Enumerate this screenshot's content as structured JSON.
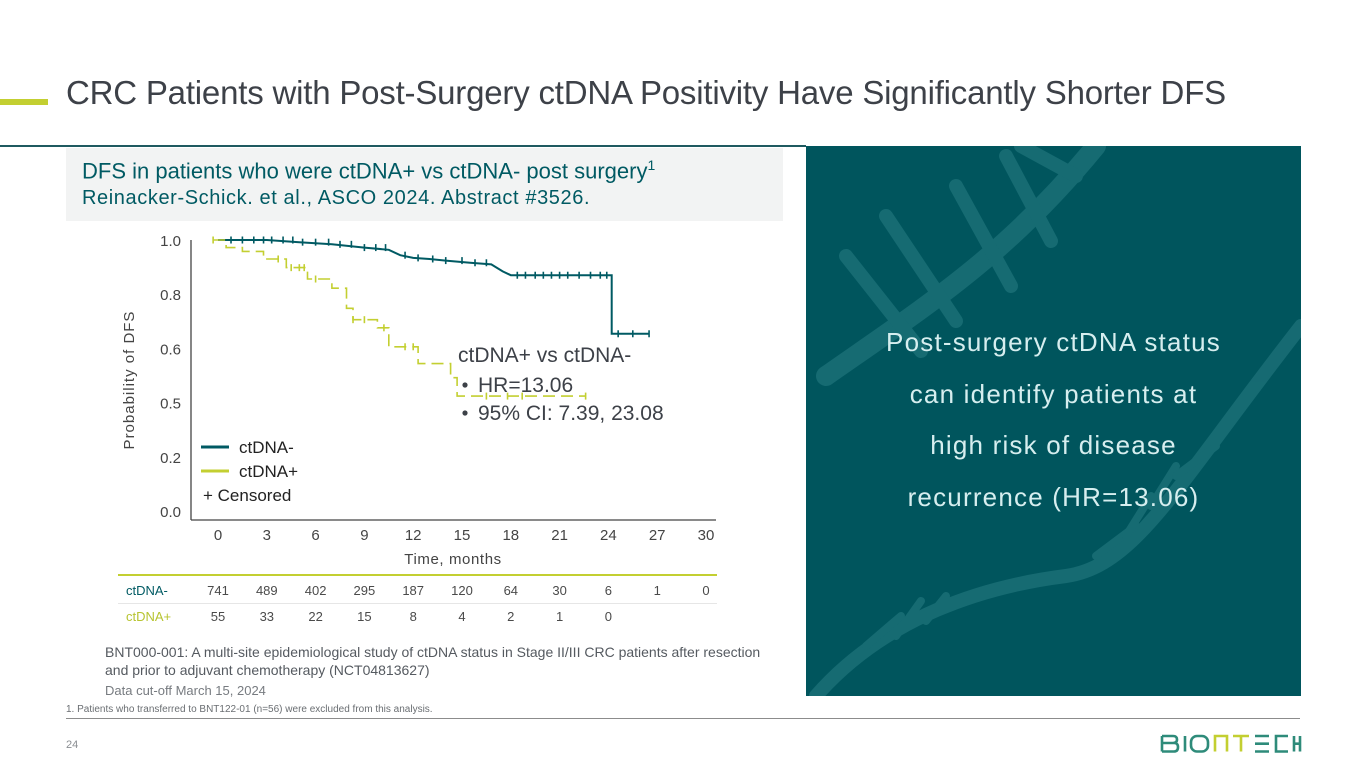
{
  "slide": {
    "title": "CRC Patients with Post-Surgery ctDNA Positivity Have Significantly Shorter DFS",
    "page_number": "24",
    "brand": {
      "logo_text_left": "BIO",
      "logo_text_mid": "NT",
      "logo_text_right": "ECH",
      "primary_color": "#00555d",
      "accent_color": "#c3cf31",
      "logo_color": "#2e8b7a"
    }
  },
  "subtitle": {
    "line1": "DFS in patients who were ctDNA+ vs ctDNA- post surgery",
    "line1_superscript": "1",
    "line2": "Reinacker-Schick. et al., ASCO 2024. Abstract #3526."
  },
  "chart_data": {
    "type": "line",
    "subtype": "kaplan-meier",
    "title": "DFS in patients who were ctDNA+ vs ctDNA- post surgery",
    "xlabel": "Time, months",
    "ylabel": "Probability of DFS",
    "xlim": [
      0,
      30
    ],
    "x_ticks": [
      0,
      3,
      6,
      9,
      12,
      15,
      18,
      21,
      24,
      27,
      30
    ],
    "y_tick_labels": [
      "0.0",
      "0.2",
      "0.5",
      "0.6",
      "0.8",
      "1.0"
    ],
    "y_scale_note": "tick labels are evenly spaced; curve y-values below are in tick-index units (0 = '0.0' ... 5 = '1.0')",
    "ylim_index": [
      0,
      5
    ],
    "grid": false,
    "legend": {
      "placement": "bottom-left",
      "entries": [
        {
          "label": "ctDNA-",
          "color": "#005a63"
        },
        {
          "label": "ctDNA+",
          "color": "#c3cf31"
        }
      ],
      "censored_label": "+ Censored"
    },
    "annotation": {
      "heading": "ctDNA+ vs ctDNA-",
      "bullets": [
        "HR=13.06",
        "95% CI: 7.39, 23.08"
      ]
    },
    "series": [
      {
        "name": "ctDNA-",
        "color": "#005a63",
        "style": "solid",
        "steps": [
          [
            0,
            5.0
          ],
          [
            3,
            5.0
          ],
          [
            5,
            4.96
          ],
          [
            7,
            4.92
          ],
          [
            9,
            4.86
          ],
          [
            10.5,
            4.82
          ],
          [
            11.2,
            4.72
          ],
          [
            12,
            4.67
          ],
          [
            13,
            4.65
          ],
          [
            14,
            4.62
          ],
          [
            15.5,
            4.58
          ],
          [
            16.8,
            4.55
          ],
          [
            17.5,
            4.42
          ],
          [
            18,
            4.35
          ],
          [
            24.2,
            4.35
          ],
          [
            24.2,
            3.27
          ],
          [
            26.5,
            3.27
          ]
        ],
        "censored_x": [
          0.8,
          1.5,
          2.2,
          2.8,
          3.3,
          4.0,
          4.6,
          5.2,
          6.0,
          6.8,
          7.5,
          8.2,
          9.0,
          9.7,
          10.3,
          11.5,
          12.3,
          13.2,
          14.0,
          15.0,
          15.8,
          16.5,
          18.4,
          18.9,
          19.5,
          20.0,
          20.5,
          21.0,
          21.5,
          22.2,
          22.9,
          23.5,
          23.9,
          24.6,
          25.5,
          26.5
        ]
      },
      {
        "name": "ctDNA+",
        "color": "#c3cf31",
        "style": "dashed",
        "steps": [
          [
            -0.3,
            5.0
          ],
          [
            0.5,
            5.0
          ],
          [
            0.5,
            4.86
          ],
          [
            1.5,
            4.86
          ],
          [
            1.5,
            4.79
          ],
          [
            2.8,
            4.79
          ],
          [
            2.8,
            4.65
          ],
          [
            4.2,
            4.65
          ],
          [
            4.2,
            4.49
          ],
          [
            5.5,
            4.49
          ],
          [
            5.5,
            4.28
          ],
          [
            7.0,
            4.28
          ],
          [
            7.0,
            4.11
          ],
          [
            7.9,
            4.11
          ],
          [
            7.9,
            3.74
          ],
          [
            8.3,
            3.74
          ],
          [
            8.3,
            3.53
          ],
          [
            9.8,
            3.53
          ],
          [
            9.8,
            3.38
          ],
          [
            10.5,
            3.38
          ],
          [
            10.5,
            3.03
          ],
          [
            12.3,
            3.03
          ],
          [
            12.3,
            2.72
          ],
          [
            14.3,
            2.72
          ],
          [
            14.3,
            2.46
          ],
          [
            14.7,
            2.46
          ],
          [
            14.7,
            2.12
          ],
          [
            22.6,
            2.12
          ]
        ],
        "censored_x": [
          -0.3,
          3.7,
          4.5,
          5.0,
          5.3,
          6.0,
          8.3,
          9.0,
          10.2,
          11.5,
          12.0,
          16.5,
          17.8,
          18.7,
          22.6
        ]
      }
    ]
  },
  "at_risk_table": {
    "rows": [
      {
        "label": "ctDNA-",
        "values": [
          "741",
          "489",
          "402",
          "295",
          "187",
          "120",
          "64",
          "30",
          "6",
          "1",
          "0"
        ]
      },
      {
        "label": "ctDNA+",
        "values": [
          "55",
          "33",
          "22",
          "15",
          "8",
          "4",
          "2",
          "1",
          "0"
        ]
      }
    ]
  },
  "notes": {
    "study": "BNT000-001: A multi-site epidemiological study of ctDNA status in Stage II/III CRC patients after resection and prior to adjuvant chemotherapy (NCT04813627)",
    "cutoff": "Data cut-off March 15, 2024",
    "footnote": "1. Patients who transferred to BNT122-01 (n=56) were excluded from this analysis."
  },
  "callout": {
    "text_lines": [
      "Post-surgery ctDNA status",
      "can identify patients at",
      "high risk of disease",
      "recurrence (HR=13.06)"
    ]
  }
}
